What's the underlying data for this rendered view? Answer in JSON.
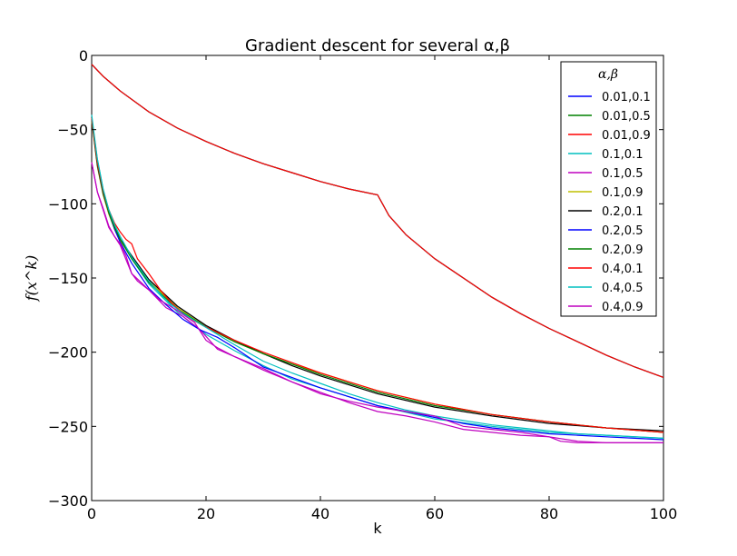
{
  "chart_data": {
    "type": "line",
    "title": "Gradient descent for several α,β",
    "xlabel": "k",
    "ylabel": "f(x^k)",
    "xlim": [
      0,
      100
    ],
    "ylim": [
      -300,
      0
    ],
    "xticks": [
      0,
      20,
      40,
      60,
      80,
      100
    ],
    "yticks": [
      0,
      -50,
      -100,
      -150,
      -200,
      -250,
      -300
    ],
    "grid": false,
    "legend": {
      "title": "α,β",
      "position": "top-right"
    },
    "series": [
      {
        "name": "0.01,0.1",
        "color": "#0000ff",
        "x": [
          0,
          2,
          5,
          10,
          15,
          20,
          25,
          30,
          35,
          40,
          45,
          50,
          52,
          55,
          60,
          65,
          70,
          75,
          80,
          85,
          90,
          95,
          100
        ],
        "y": [
          -6,
          -14,
          -24,
          -38,
          -49,
          -58,
          -66,
          -73,
          -79,
          -85,
          -90,
          -94,
          -108,
          -121,
          -137,
          -150,
          -163,
          -174,
          -184,
          -193,
          -202,
          -210,
          -217
        ]
      },
      {
        "name": "0.01,0.5",
        "color": "#008000",
        "x": [
          0,
          2,
          5,
          10,
          15,
          20,
          25,
          30,
          35,
          40,
          45,
          50,
          52,
          55,
          60,
          65,
          70,
          75,
          80,
          85,
          90,
          95,
          100
        ],
        "y": [
          -6,
          -14,
          -24,
          -38,
          -49,
          -58,
          -66,
          -73,
          -79,
          -85,
          -90,
          -94,
          -108,
          -121,
          -137,
          -150,
          -163,
          -174,
          -184,
          -193,
          -202,
          -210,
          -217
        ]
      },
      {
        "name": "0.01,0.9",
        "color": "#ff0000",
        "x": [
          0,
          2,
          5,
          10,
          15,
          20,
          25,
          30,
          35,
          40,
          45,
          50,
          52,
          55,
          60,
          65,
          70,
          75,
          80,
          85,
          90,
          95,
          100
        ],
        "y": [
          -6,
          -14,
          -24,
          -38,
          -49,
          -58,
          -66,
          -73,
          -79,
          -85,
          -90,
          -94,
          -108,
          -121,
          -137,
          -150,
          -163,
          -174,
          -184,
          -193,
          -202,
          -210,
          -217
        ]
      },
      {
        "name": "0.1,0.1",
        "color": "#00bfbf",
        "x": [
          0,
          1,
          2,
          3,
          4,
          5,
          7,
          10,
          15,
          20,
          25,
          30,
          35,
          40,
          50,
          60,
          70,
          80,
          90,
          100
        ],
        "y": [
          -42,
          -70,
          -90,
          -105,
          -115,
          -124,
          -137,
          -154,
          -173,
          -188,
          -199,
          -209,
          -218,
          -224,
          -236,
          -245,
          -250,
          -254,
          -256,
          -258
        ]
      },
      {
        "name": "0.1,0.5",
        "color": "#bf00bf",
        "x": [
          0,
          1,
          2,
          3,
          4,
          5,
          7,
          10,
          13,
          16,
          19,
          22,
          25,
          30,
          35,
          40,
          45,
          50,
          55,
          60,
          65,
          70,
          75,
          80,
          85,
          90,
          95,
          100
        ],
        "y": [
          -72,
          -92,
          -103,
          -115,
          -122,
          -128,
          -147,
          -158,
          -170,
          -176,
          -185,
          -198,
          -203,
          -211,
          -220,
          -227,
          -234,
          -240,
          -243,
          -247,
          -252,
          -254,
          -256,
          -257,
          -260,
          -261,
          -261,
          -261
        ]
      },
      {
        "name": "0.1,0.9",
        "color": "#bfbf00",
        "x": [
          0,
          1,
          2,
          3,
          4,
          5,
          7,
          10,
          15,
          20,
          25,
          30,
          35,
          40,
          50,
          60,
          70,
          80,
          90,
          100
        ],
        "y": [
          -44,
          -75,
          -94,
          -107,
          -117,
          -125,
          -136,
          -152,
          -170,
          -183,
          -193,
          -201,
          -208,
          -214,
          -226,
          -235,
          -242,
          -247,
          -251,
          -254
        ]
      },
      {
        "name": "0.2,0.1",
        "color": "#000000",
        "x": [
          0,
          1,
          2,
          3,
          4,
          5,
          7,
          10,
          15,
          20,
          25,
          30,
          35,
          40,
          50,
          60,
          70,
          80,
          90,
          100
        ],
        "y": [
          -43,
          -74,
          -93,
          -106,
          -116,
          -124,
          -135,
          -151,
          -169,
          -182,
          -192,
          -201,
          -209,
          -216,
          -228,
          -237,
          -243,
          -248,
          -251,
          -253
        ]
      },
      {
        "name": "0.2,0.5",
        "color": "#0000ff",
        "x": [
          0,
          1,
          2,
          3,
          4,
          5,
          7,
          10,
          13,
          16,
          19,
          22,
          25,
          30,
          35,
          40,
          45,
          50,
          55,
          60,
          65,
          70,
          75,
          80,
          85,
          90,
          95,
          100
        ],
        "y": [
          -42,
          -73,
          -92,
          -106,
          -117,
          -126,
          -140,
          -157,
          -168,
          -178,
          -185,
          -190,
          -197,
          -210,
          -217,
          -224,
          -230,
          -236,
          -240,
          -244,
          -248,
          -251,
          -253,
          -255,
          -256,
          -257,
          -258,
          -259
        ]
      },
      {
        "name": "0.2,0.9",
        "color": "#008000",
        "x": [
          0,
          1,
          2,
          3,
          4,
          5,
          7,
          10,
          15,
          20,
          25,
          30,
          35,
          40,
          50,
          60,
          70,
          80,
          90,
          100
        ],
        "y": [
          -42,
          -73,
          -92,
          -106,
          -116,
          -124,
          -137,
          -153,
          -171,
          -183,
          -193,
          -201,
          -208,
          -215,
          -227,
          -236,
          -242,
          -247,
          -251,
          -254
        ]
      },
      {
        "name": "0.4,0.1",
        "color": "#ff0000",
        "x": [
          0,
          1,
          2,
          3,
          4,
          5,
          6,
          7,
          8,
          10,
          12,
          14,
          16,
          18,
          20,
          25,
          30,
          35,
          40,
          50,
          60,
          70,
          80,
          90,
          100
        ],
        "y": [
          -42,
          -72,
          -91,
          -104,
          -113,
          -119,
          -124,
          -127,
          -137,
          -147,
          -158,
          -167,
          -174,
          -179,
          -183,
          -192,
          -200,
          -207,
          -214,
          -226,
          -235,
          -242,
          -247,
          -251,
          -254
        ]
      },
      {
        "name": "0.4,0.5",
        "color": "#00bfbf",
        "x": [
          0,
          1,
          2,
          3,
          4,
          5,
          7,
          10,
          13,
          16,
          19,
          22,
          25,
          30,
          35,
          40,
          45,
          50,
          55,
          60,
          65,
          70,
          75,
          80,
          85,
          90,
          95,
          100
        ],
        "y": [
          -40,
          -70,
          -90,
          -104,
          -114,
          -122,
          -136,
          -152,
          -165,
          -174,
          -181,
          -188,
          -195,
          -206,
          -214,
          -221,
          -228,
          -234,
          -239,
          -243,
          -246,
          -249,
          -251,
          -253,
          -255,
          -256,
          -257,
          -258
        ]
      },
      {
        "name": "0.4,0.9",
        "color": "#bf00bf",
        "x": [
          0,
          1,
          2,
          3,
          4,
          5,
          6,
          7,
          8,
          10,
          12,
          15,
          18,
          20,
          22,
          25,
          30,
          35,
          40,
          45,
          50,
          55,
          60,
          65,
          70,
          75,
          80,
          82,
          85,
          90,
          95,
          100
        ],
        "y": [
          -72,
          -92,
          -104,
          -116,
          -122,
          -127,
          -135,
          -147,
          -152,
          -158,
          -165,
          -172,
          -180,
          -192,
          -197,
          -203,
          -212,
          -220,
          -228,
          -233,
          -237,
          -240,
          -243,
          -250,
          -252,
          -254,
          -257,
          -260,
          -261,
          -261,
          -261,
          -261
        ]
      }
    ]
  }
}
